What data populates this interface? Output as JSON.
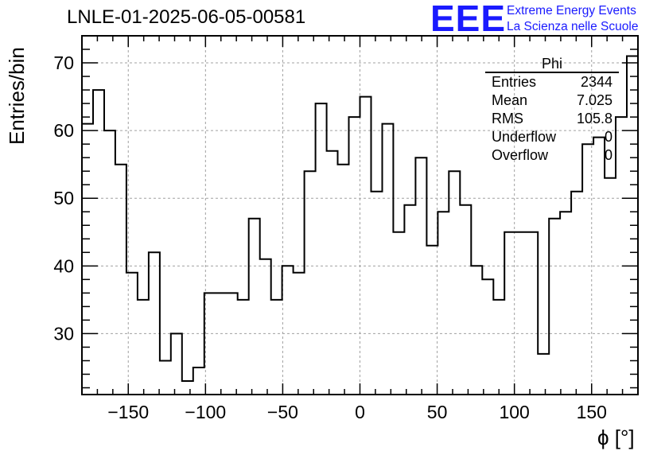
{
  "chart_data": {
    "type": "histogram",
    "title": "LNLE-01-2025-06-05-00581",
    "xlabel": "ϕ [°]",
    "ylabel": "Entries/bin",
    "xlim": [
      -180,
      180
    ],
    "ylim": [
      21,
      74
    ],
    "bin_width": 7.2,
    "x_ticks": [
      -150,
      -100,
      -50,
      0,
      50,
      100,
      150
    ],
    "y_ticks": [
      30,
      40,
      50,
      60,
      70
    ],
    "x_tick_labels": [
      "−150",
      "−100",
      "−50",
      "0",
      "50",
      "100",
      "150"
    ],
    "y_tick_labels": [
      "30",
      "40",
      "50",
      "60",
      "70"
    ],
    "grid": true,
    "values": [
      61,
      66,
      60,
      55,
      39,
      35,
      42,
      26,
      30,
      23,
      25,
      36,
      36,
      36,
      35,
      47,
      41,
      35,
      40,
      39,
      54,
      64,
      57,
      55,
      62,
      65,
      51,
      61,
      45,
      49,
      56,
      43,
      48,
      54,
      49,
      40,
      38,
      35,
      45,
      45,
      45,
      27,
      47,
      48,
      51,
      58,
      59,
      53,
      62,
      71
    ],
    "stats": {
      "name": "Phi",
      "rows": [
        {
          "label": "Entries",
          "value": "2344"
        },
        {
          "label": "Mean",
          "value": "7.025"
        },
        {
          "label": "RMS",
          "value": "105.8"
        },
        {
          "label": "Underflow",
          "value": "0"
        },
        {
          "label": "Overflow",
          "value": "0"
        }
      ]
    }
  },
  "logo": {
    "text": "EEE",
    "line1": "Extreme Energy Events",
    "line2": "La Scienza nelle Scuole"
  }
}
